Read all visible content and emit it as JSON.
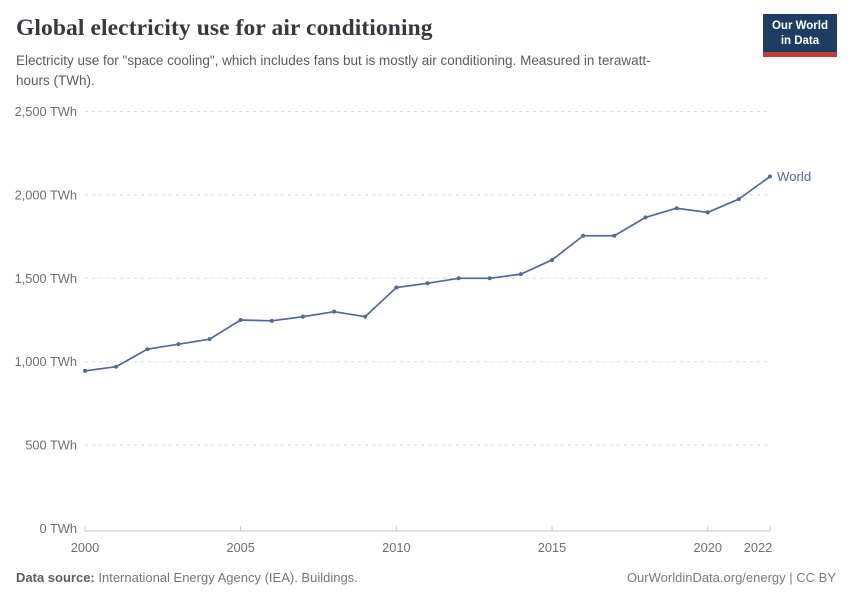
{
  "header": {
    "logo": {
      "line1": "Our World",
      "line2": "in Data",
      "bg_color": "#1d3d63",
      "accent_color": "#c43b31"
    }
  },
  "footer": {
    "datasource_label": "Data source:",
    "datasource_text": " International Energy Agency (IEA). Buildings.",
    "credit": "OurWorldinData.org/energy | CC BY"
  },
  "chart_data": {
    "type": "line",
    "title": "Global electricity use for air conditioning",
    "subtitle": "Electricity use for \"space cooling\", which includes fans but is mostly air conditioning. Measured in terawatt-hours (TWh).",
    "xlabel": "",
    "ylabel": "",
    "xlim": [
      2000,
      2022
    ],
    "ylim": [
      0,
      2500
    ],
    "grid": "horizontal-dashed",
    "legend_position": "end-of-line",
    "x": [
      2000,
      2001,
      2002,
      2003,
      2004,
      2005,
      2006,
      2007,
      2008,
      2009,
      2010,
      2011,
      2012,
      2013,
      2014,
      2015,
      2016,
      2017,
      2018,
      2019,
      2020,
      2021,
      2022
    ],
    "series": [
      {
        "name": "World",
        "color": "#4c6a9c",
        "values": [
          945,
          970,
          1075,
          1105,
          1135,
          1250,
          1245,
          1270,
          1300,
          1270,
          1445,
          1470,
          1500,
          1500,
          1525,
          1610,
          1755,
          1755,
          1865,
          1920,
          1895,
          1975,
          2110
        ]
      }
    ],
    "xticks": [
      2000,
      2005,
      2010,
      2015,
      2020,
      2022
    ],
    "yticks": [
      0,
      500,
      1000,
      1500,
      2000,
      2500
    ],
    "ytick_labels": [
      "0 TWh",
      "500 TWh",
      "1,000 TWh",
      "1,500 TWh",
      "2,000 TWh",
      "2,500 TWh"
    ]
  }
}
